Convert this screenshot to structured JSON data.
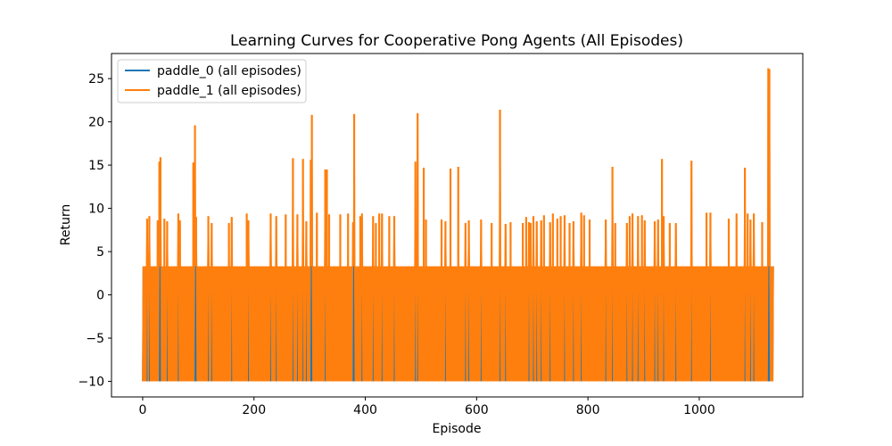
{
  "chart_data": {
    "type": "line",
    "title": "Learning Curves for Cooperative Pong Agents (All Episodes)",
    "xlabel": "Episode",
    "ylabel": "Return",
    "xlim": [
      -56,
      1186
    ],
    "ylim": [
      -11.8,
      27.9
    ],
    "xticks": [
      0,
      200,
      400,
      600,
      800,
      1000
    ],
    "yticks": [
      -10,
      -5,
      0,
      5,
      10,
      15,
      20,
      25
    ],
    "grid": false,
    "legend_position": "upper-left",
    "episodes": 1134,
    "band": {
      "low": -10,
      "high": 3.3
    },
    "series": [
      {
        "name": "paddle_0 (all episodes)",
        "color": "#1f77b4",
        "style": "line"
      },
      {
        "name": "paddle_1 (all episodes)",
        "color": "#ff7f0e",
        "style": "line",
        "spikes": [
          [
            8,
            8.8
          ],
          [
            12,
            9.1
          ],
          [
            27,
            8.6
          ],
          [
            30,
            15.4
          ],
          [
            32,
            15.9
          ],
          [
            39,
            8.8
          ],
          [
            44,
            8.5
          ],
          [
            64,
            9.4
          ],
          [
            67,
            8.6
          ],
          [
            91,
            15.3
          ],
          [
            94,
            19.6
          ],
          [
            96,
            9.0
          ],
          [
            118,
            9.1
          ],
          [
            124,
            8.3
          ],
          [
            155,
            8.3
          ],
          [
            160,
            9.0
          ],
          [
            187,
            9.4
          ],
          [
            190,
            8.6
          ],
          [
            230,
            9.4
          ],
          [
            240,
            9.1
          ],
          [
            257,
            9.3
          ],
          [
            270,
            15.8
          ],
          [
            278,
            9.3
          ],
          [
            288,
            15.7
          ],
          [
            294,
            8.5
          ],
          [
            302,
            15.6
          ],
          [
            304,
            20.8
          ],
          [
            313,
            9.5
          ],
          [
            328,
            14.5
          ],
          [
            331,
            14.5
          ],
          [
            335,
            9.3
          ],
          [
            355,
            9.3
          ],
          [
            369,
            9.4
          ],
          [
            378,
            8.4
          ],
          [
            380,
            20.9
          ],
          [
            391,
            9.1
          ],
          [
            394,
            9.4
          ],
          [
            414,
            9.1
          ],
          [
            419,
            8.3
          ],
          [
            425,
            9.4
          ],
          [
            430,
            9.4
          ],
          [
            443,
            9.1
          ],
          [
            452,
            9.1
          ],
          [
            490,
            15.4
          ],
          [
            494,
            21.0
          ],
          [
            505,
            14.7
          ],
          [
            509,
            8.7
          ],
          [
            537,
            8.7
          ],
          [
            544,
            8.5
          ],
          [
            553,
            14.6
          ],
          [
            567,
            14.8
          ],
          [
            580,
            8.3
          ],
          [
            586,
            8.6
          ],
          [
            608,
            8.7
          ],
          [
            627,
            8.3
          ],
          [
            642,
            21.4
          ],
          [
            652,
            8.2
          ],
          [
            661,
            8.4
          ],
          [
            683,
            8.3
          ],
          [
            689,
            9.0
          ],
          [
            694,
            8.4
          ],
          [
            697,
            8.3
          ],
          [
            702,
            9.1
          ],
          [
            708,
            8.5
          ],
          [
            716,
            8.6
          ],
          [
            721,
            9.2
          ],
          [
            732,
            8.4
          ],
          [
            737,
            9.4
          ],
          [
            745,
            8.8
          ],
          [
            751,
            9.1
          ],
          [
            758,
            9.2
          ],
          [
            767,
            8.3
          ],
          [
            774,
            8.5
          ],
          [
            788,
            9.5
          ],
          [
            793,
            9.2
          ],
          [
            803,
            8.7
          ],
          [
            832,
            8.7
          ],
          [
            844,
            14.8
          ],
          [
            849,
            8.3
          ],
          [
            870,
            8.3
          ],
          [
            875,
            9.1
          ],
          [
            880,
            9.4
          ],
          [
            890,
            9.1
          ],
          [
            897,
            9.2
          ],
          [
            902,
            8.6
          ],
          [
            920,
            8.5
          ],
          [
            926,
            8.7
          ],
          [
            933,
            15.7
          ],
          [
            936,
            9.1
          ],
          [
            947,
            8.3
          ],
          [
            958,
            8.3
          ],
          [
            986,
            15.5
          ],
          [
            1013,
            9.5
          ],
          [
            1020,
            9.5
          ],
          [
            1053,
            8.8
          ],
          [
            1067,
            9.4
          ],
          [
            1082,
            14.7
          ],
          [
            1087,
            9.4
          ],
          [
            1092,
            8.7
          ],
          [
            1098,
            9.4
          ],
          [
            1113,
            8.4
          ],
          [
            1124,
            26.2
          ],
          [
            1126,
            26.1
          ]
        ]
      }
    ]
  }
}
